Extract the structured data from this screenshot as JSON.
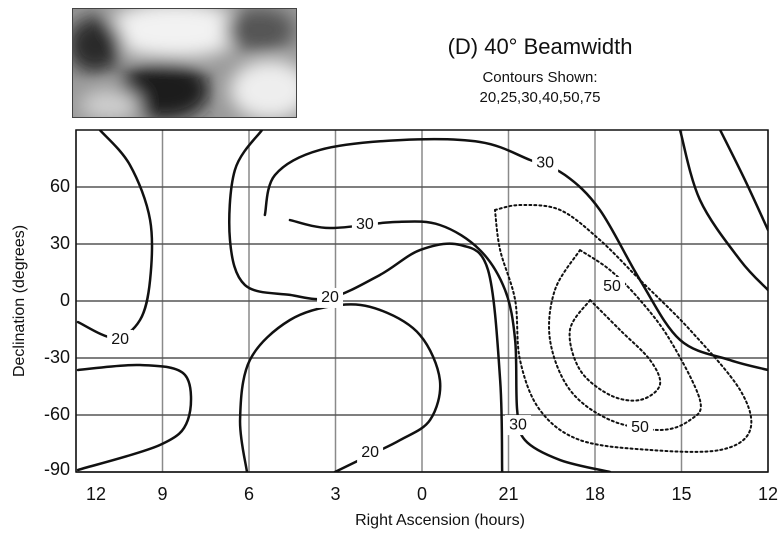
{
  "chart_data": {
    "type": "contour",
    "title": "(D) 40°  Beamwidth",
    "subtitle": "Contours Shown:",
    "contour_levels_label": "20,25,30,40,50,75",
    "xlabel": "Right Ascension (hours)",
    "ylabel": "Declination (degrees)",
    "xlim": [
      12,
      -12
    ],
    "xticks": [
      12,
      9,
      6,
      3,
      0,
      {
        "value": -3,
        "label": "21"
      },
      {
        "value": -6,
        "label": "18"
      },
      {
        "value": -9,
        "label": "15"
      },
      {
        "value": -12,
        "label": "12"
      }
    ],
    "ylim": [
      -90,
      90
    ],
    "yticks": [
      -90,
      -60,
      -30,
      0,
      30,
      60
    ],
    "grid": true,
    "color": "#111111",
    "contours": [
      {
        "dashed": false,
        "x": [
          11.17,
          10.13,
          9.43,
          9.43,
          9.78,
          10.65,
          11.93
        ],
        "y": [
          90,
          71.6,
          42.6,
          11.1,
          -10,
          -19.5,
          -11.1
        ]
      },
      {
        "dashed": false,
        "x": [
          11.93,
          9.78,
          8.22,
          8.12,
          9.09,
          11.93
        ],
        "y": [
          -36.3,
          -33.7,
          -38.9,
          -62.6,
          -75.8,
          -88.9
        ]
      },
      {
        "dashed": false,
        "x": [
          5.55,
          6.49,
          6.66,
          6.14,
          4.58,
          3.19,
          1.46,
          0.07,
          -1.32,
          -2.29,
          -2.71,
          -2.78
        ],
        "y": [
          90,
          68.9,
          32.1,
          8.4,
          3.2,
          1.6,
          13.7,
          26.8,
          29.5,
          16.3,
          -41.6,
          -90
        ]
      },
      {
        "dashed": false,
        "x": [
          6.07,
          6.31,
          5.97,
          4.58,
          2.84,
          1.46,
          0.07,
          -0.62,
          -0.28,
          0.76,
          1.8,
          3.02
        ],
        "y": [
          -90,
          -62.6,
          -31.1,
          -10,
          -2.1,
          -4.7,
          -17.9,
          -41.6,
          -62.6,
          -73.2,
          -81,
          -90
        ]
      },
      {
        "dashed": false,
        "x": [
          5.45,
          5.1,
          3.54,
          0.76,
          -2.01,
          -3.75,
          -4.96,
          -6.17,
          -7.56,
          -8.95,
          -10.68,
          -12
        ],
        "y": [
          45.3,
          66.3,
          79.5,
          84.7,
          83.7,
          74.2,
          66.3,
          47.9,
          11.1,
          -20.5,
          -31.1,
          -36.3
        ]
      },
      {
        "dashed": false,
        "x": [
          4.58,
          3.19,
          0.94,
          -0.62,
          -2.01,
          -2.88,
          -3.23,
          -3.3,
          -3.57,
          -4.79,
          -6.52
        ],
        "y": [
          42.6,
          38.4,
          41.6,
          40,
          26.8,
          5.8,
          -20.5,
          -57.4,
          -73.2,
          -83.7,
          -90
        ]
      },
      {
        "dashed": false,
        "x": [
          -8.95,
          -9.64,
          -11.03,
          -12
        ],
        "y": [
          90,
          53.2,
          21.6,
          5.8
        ]
      },
      {
        "dashed": false,
        "x": [
          -10.34,
          -11.2,
          -12
        ],
        "y": [
          90,
          63.7,
          37.4
        ]
      },
      {
        "dashed": true,
        "x": [
          -2.53,
          -3.4,
          -4.79,
          -6.17,
          -7.56,
          -9.3,
          -11.03,
          -11.38,
          -10.34,
          -7.91,
          -5.48,
          -4.09,
          -3.4,
          -3.23,
          -2.71,
          -2.53
        ],
        "y": [
          47.9,
          50.5,
          47.9,
          32.1,
          11.1,
          -15.3,
          -46.8,
          -67.9,
          -78.4,
          -78.4,
          -73.2,
          -57.4,
          -31.1,
          0.5,
          26.8,
          47.9
        ]
      },
      {
        "dashed": true,
        "x": [
          -5.48,
          -6.52,
          -7.56,
          -8.6,
          -9.64,
          -9.3,
          -8.25,
          -6.52,
          -5.13,
          -4.44,
          -4.61,
          -5.48
        ],
        "y": [
          26.8,
          16.3,
          0.5,
          -20.5,
          -52.1,
          -62.6,
          -67.9,
          -62.6,
          -46.8,
          -20.5,
          5.8,
          26.8
        ]
      },
      {
        "dashed": true,
        "x": [
          -5.83,
          -6.87,
          -7.91,
          -8.25,
          -7.56,
          -6.52,
          -5.48,
          -5.13,
          -5.83
        ],
        "y": [
          0.5,
          -15.3,
          -31.1,
          -44.2,
          -52.1,
          -49.5,
          -36.3,
          -15.3,
          0.5
        ]
      }
    ],
    "annotations": [
      {
        "text": "30",
        "x": -4.27,
        "y": 72.6
      },
      {
        "text": "30",
        "x": 1.98,
        "y": 40
      },
      {
        "text": "20",
        "x": 10.47,
        "y": -20.5
      },
      {
        "text": "20",
        "x": 3.19,
        "y": 1.6
      },
      {
        "text": "20",
        "x": 1.8,
        "y": -80
      },
      {
        "text": "30",
        "x": -3.33,
        "y": -65.3
      },
      {
        "text": "50",
        "x": -6.59,
        "y": 7.4
      },
      {
        "text": "50",
        "x": -7.56,
        "y": -66.8
      }
    ]
  }
}
